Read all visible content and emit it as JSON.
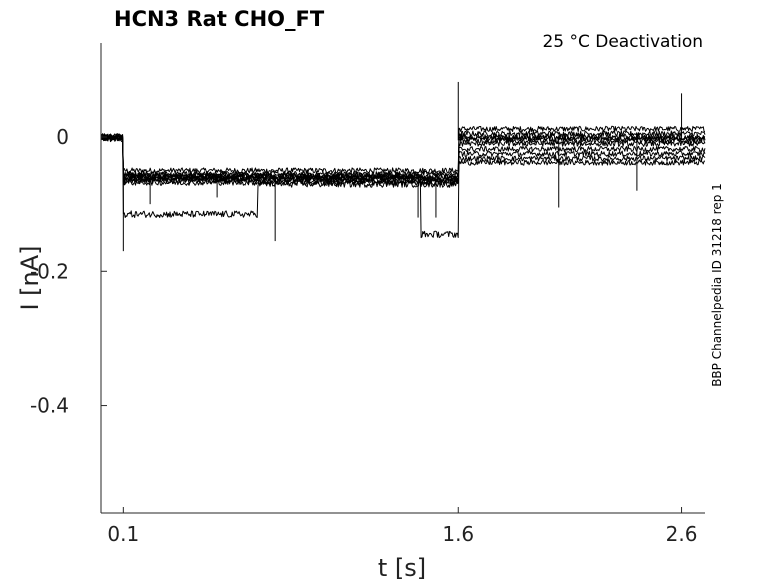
{
  "chart_data": {
    "type": "line",
    "title": "HCN3  Rat  CHO_FT",
    "annotation": "25 °C  Deactivation",
    "side_label": "BBP Channelpedia ID 31218 rep 1",
    "xlabel": "t [s]",
    "ylabel": "I [nA]",
    "xlim": [
      0.0,
      2.705
    ],
    "ylim": [
      -0.56,
      0.14
    ],
    "xticks": [
      0.1,
      1.6,
      2.6
    ],
    "xtick_labels": [
      "0.1",
      "1.6",
      "2.6"
    ],
    "yticks": [
      0,
      -0.2,
      -0.4
    ],
    "ytick_labels": [
      "0",
      "-0.2",
      "-0.4"
    ],
    "grid": false,
    "series": [
      {
        "pre": -0.002,
        "step1": -0.05,
        "step2": 0.012,
        "noise": 0.004
      },
      {
        "pre": 0.0,
        "step1": -0.055,
        "step2": 0.005,
        "noise": 0.004
      },
      {
        "pre": -0.003,
        "step1": -0.058,
        "step2": -0.002,
        "noise": 0.004
      },
      {
        "pre": 0.001,
        "step1": -0.062,
        "step2": -0.01,
        "noise": 0.004
      },
      {
        "pre": -0.001,
        "step1": -0.06,
        "step2": -0.018,
        "noise": 0.004
      },
      {
        "pre": 0.0,
        "step1": -0.065,
        "step2": -0.025,
        "noise": 0.004
      },
      {
        "pre": -0.002,
        "step1": -0.068,
        "step2": -0.032,
        "noise": 0.004
      },
      {
        "pre": 0.001,
        "step1": -0.063,
        "step2": -0.038,
        "noise": 0.004
      },
      {
        "pre": 0.0,
        "step1": -0.07,
        "step2": 0.0,
        "noise": 0.005,
        "burst_from": 0.1,
        "burst_to": 0.7,
        "burst_level": -0.115
      },
      {
        "pre": -0.001,
        "step1": -0.057,
        "step2": -0.005,
        "noise": 0.005,
        "burst_from": 1.43,
        "burst_to": 1.6,
        "burst_level": -0.145
      }
    ],
    "spikes": [
      {
        "t": 0.1,
        "i": -0.17
      },
      {
        "t": 0.105,
        "i": -0.07
      },
      {
        "t": 0.22,
        "i": -0.1
      },
      {
        "t": 0.52,
        "i": -0.09
      },
      {
        "t": 0.78,
        "i": -0.155
      },
      {
        "t": 1.42,
        "i": -0.12
      },
      {
        "t": 1.5,
        "i": -0.12
      },
      {
        "t": 1.6,
        "i": 0.082
      },
      {
        "t": 2.05,
        "i": -0.105
      },
      {
        "t": 2.6,
        "i": 0.065
      },
      {
        "t": 2.4,
        "i": -0.08
      }
    ]
  }
}
